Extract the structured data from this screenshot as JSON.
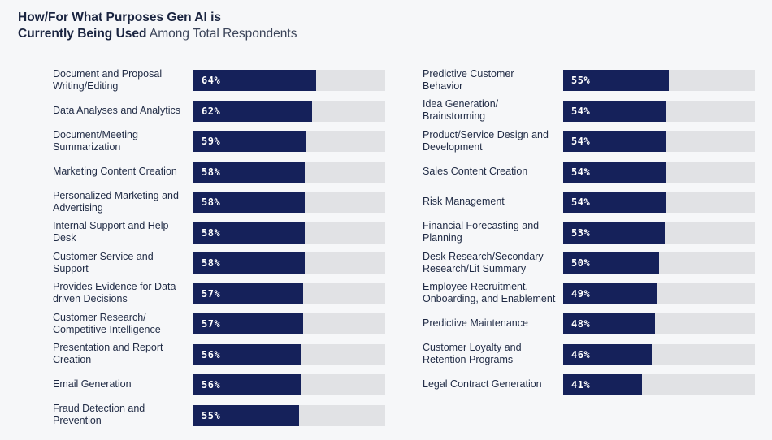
{
  "header": {
    "title_line1": "How/For What Purposes Gen AI is",
    "title_line2_bold": "Currently Being Used",
    "title_line2_light": " Among Total Respondents"
  },
  "colors": {
    "bar": "#15215a",
    "track": "#e1e2e5"
  },
  "chart_data": [
    {
      "type": "bar",
      "orientation": "horizontal",
      "xlim": [
        0,
        100
      ],
      "categories": [
        "Document and Proposal Writing/Editing",
        "Data Analyses and Analytics",
        "Document/Meeting Summarization",
        "Marketing Content Creation",
        "Personalized Marketing and Advertising",
        "Internal Support and Help Desk",
        "Customer Service and Support",
        "Provides Evidence for Data-driven Decisions",
        "Customer Research/ Competitive Intelligence",
        "Presentation and Report Creation",
        "Email Generation",
        "Fraud Detection and Prevention"
      ],
      "values": [
        64,
        62,
        59,
        58,
        58,
        58,
        58,
        57,
        57,
        56,
        56,
        55
      ],
      "value_labels": [
        "64%",
        "62%",
        "59%",
        "58%",
        "58%",
        "58%",
        "58%",
        "57%",
        "57%",
        "56%",
        "56%",
        "55%"
      ]
    },
    {
      "type": "bar",
      "orientation": "horizontal",
      "xlim": [
        0,
        100
      ],
      "categories": [
        "Predictive Customer Behavior",
        "Idea Generation/ Brainstorming",
        "Product/Service Design and Development",
        "Sales Content Creation",
        "Risk Management",
        "Financial Forecasting and Planning",
        "Desk Research/Secondary Research/Lit Summary",
        "Employee Recruitment, Onboarding, and Enablement",
        "Predictive Maintenance",
        "Customer Loyalty and Retention Programs",
        "Legal Contract Generation"
      ],
      "values": [
        55,
        54,
        54,
        54,
        54,
        53,
        50,
        49,
        48,
        46,
        41
      ],
      "value_labels": [
        "55%",
        "54%",
        "54%",
        "54%",
        "54%",
        "53%",
        "50%",
        "49%",
        "48%",
        "46%",
        "41%"
      ]
    }
  ]
}
